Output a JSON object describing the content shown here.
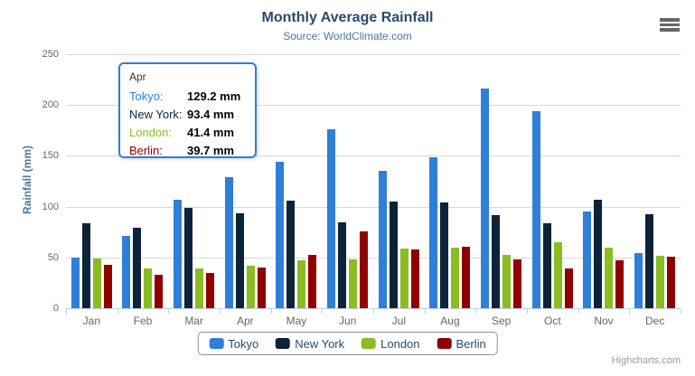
{
  "credits": {
    "label": "Highcharts.com"
  },
  "menu": {
    "icon": "hamburger-icon"
  },
  "tooltip": {
    "header": "Apr",
    "rows": [
      {
        "label": "Tokyo:",
        "value": "129.2 mm",
        "color": "#2f7ed8"
      },
      {
        "label": "New York:",
        "value": "93.4 mm",
        "color": "#0d233a"
      },
      {
        "label": "London:",
        "value": "41.4 mm",
        "color": "#8bbc21"
      },
      {
        "label": "Berlin:",
        "value": "39.7 mm",
        "color": "#910000"
      }
    ]
  },
  "colors": {
    "tokyo": "#2f7ed8",
    "new_york": "#0d233a",
    "london": "#8bbc21",
    "berlin": "#910000",
    "title_text": "#274b6d",
    "subtitle_text": "#4d759e",
    "axis_labels": "#666666",
    "gridline": "#d8d8d8",
    "axis_line": "#c0d0e0",
    "legend_border": "#909090",
    "tooltip_border": "#2f7ed8"
  },
  "chart_data": {
    "type": "bar",
    "title": "Monthly Average Rainfall",
    "subtitle": "Source: WorldClimate.com",
    "categories": [
      "Jan",
      "Feb",
      "Mar",
      "Apr",
      "May",
      "Jun",
      "Jul",
      "Aug",
      "Sep",
      "Oct",
      "Nov",
      "Dec"
    ],
    "series": [
      {
        "name": "Tokyo",
        "color": "#2f7ed8",
        "values": [
          49.9,
          71.5,
          106.4,
          129.2,
          144.0,
          176.0,
          135.6,
          148.5,
          216.4,
          194.1,
          95.6,
          54.4
        ]
      },
      {
        "name": "New York",
        "color": "#0d233a",
        "values": [
          83.6,
          78.8,
          98.5,
          93.4,
          106.0,
          84.5,
          105.0,
          104.3,
          91.2,
          83.5,
          106.6,
          92.3
        ]
      },
      {
        "name": "London",
        "color": "#8bbc21",
        "values": [
          48.9,
          38.8,
          39.3,
          41.4,
          47.0,
          48.3,
          59.0,
          59.6,
          52.4,
          65.2,
          59.3,
          51.2
        ]
      },
      {
        "name": "Berlin",
        "color": "#910000",
        "values": [
          42.4,
          33.2,
          34.5,
          39.7,
          52.6,
          75.5,
          57.4,
          60.4,
          47.6,
          39.1,
          46.8,
          51.1
        ]
      }
    ],
    "xlabel": "",
    "ylabel": "Rainfall (mm)",
    "ylim": [
      0,
      250
    ],
    "yticks": [
      0,
      50,
      100,
      150,
      200,
      250
    ],
    "grid": true,
    "legend_position": "bottom"
  }
}
